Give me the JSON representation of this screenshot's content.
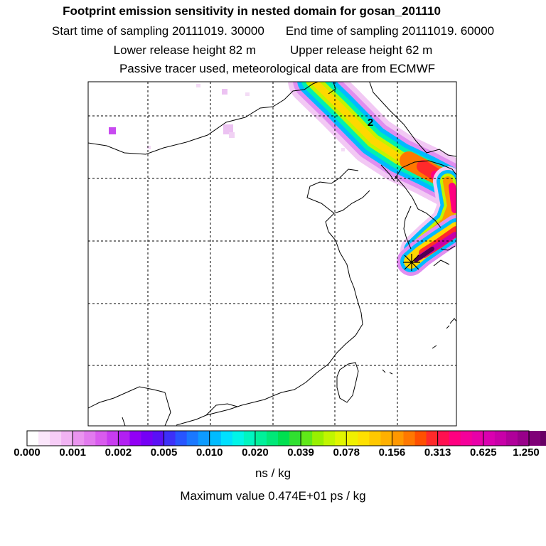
{
  "header": {
    "title": "Footprint emission sensitivity in nested domain for gosan_201110",
    "start_label": "Start time of sampling 20111019. 30000",
    "end_label": "End time of sampling 20111019. 60000",
    "lower_label": "Lower release height   82 m",
    "upper_label": "Upper release height   62 m",
    "info": "Passive tracer used, meteorological data are from ECMWF"
  },
  "map": {
    "contour_label": "2",
    "station_marker": "release-site-star-icon",
    "border_color": "#000000",
    "grid_style": "dashed"
  },
  "colorbar": {
    "ticks": [
      "0.000",
      "0.001",
      "0.002",
      "0.005",
      "0.010",
      "0.020",
      "0.039",
      "0.078",
      "0.156",
      "0.313",
      "0.625",
      "1.250"
    ],
    "colors": [
      "#ffffff",
      "#fbe6fb",
      "#f7cdf7",
      "#f1b3f3",
      "#ea94ef",
      "#e27aee",
      "#d95bee",
      "#c83cf0",
      "#b21ff2",
      "#9200f5",
      "#7500f5",
      "#5a10f5",
      "#3d30f8",
      "#2855ff",
      "#1a78ff",
      "#0d9bff",
      "#00bbff",
      "#00e0ff",
      "#00f5e8",
      "#00f5c0",
      "#00f09a",
      "#00e878",
      "#00e050",
      "#30e030",
      "#60e818",
      "#98f000",
      "#c0f500",
      "#e0f500",
      "#f0f000",
      "#ffe000",
      "#ffc800",
      "#ffb000",
      "#ff9800",
      "#ff7800",
      "#ff5000",
      "#ff2a2a",
      "#ff1050",
      "#ff0080",
      "#f5009a",
      "#e800a8",
      "#da00b0",
      "#c800a8",
      "#b0009a",
      "#98008a",
      "#800078",
      "#680065",
      "#500050",
      "#380038"
    ],
    "units": "ns / kg"
  },
  "footer": {
    "max_value": "Maximum value  0.474E+01 ps / kg"
  }
}
